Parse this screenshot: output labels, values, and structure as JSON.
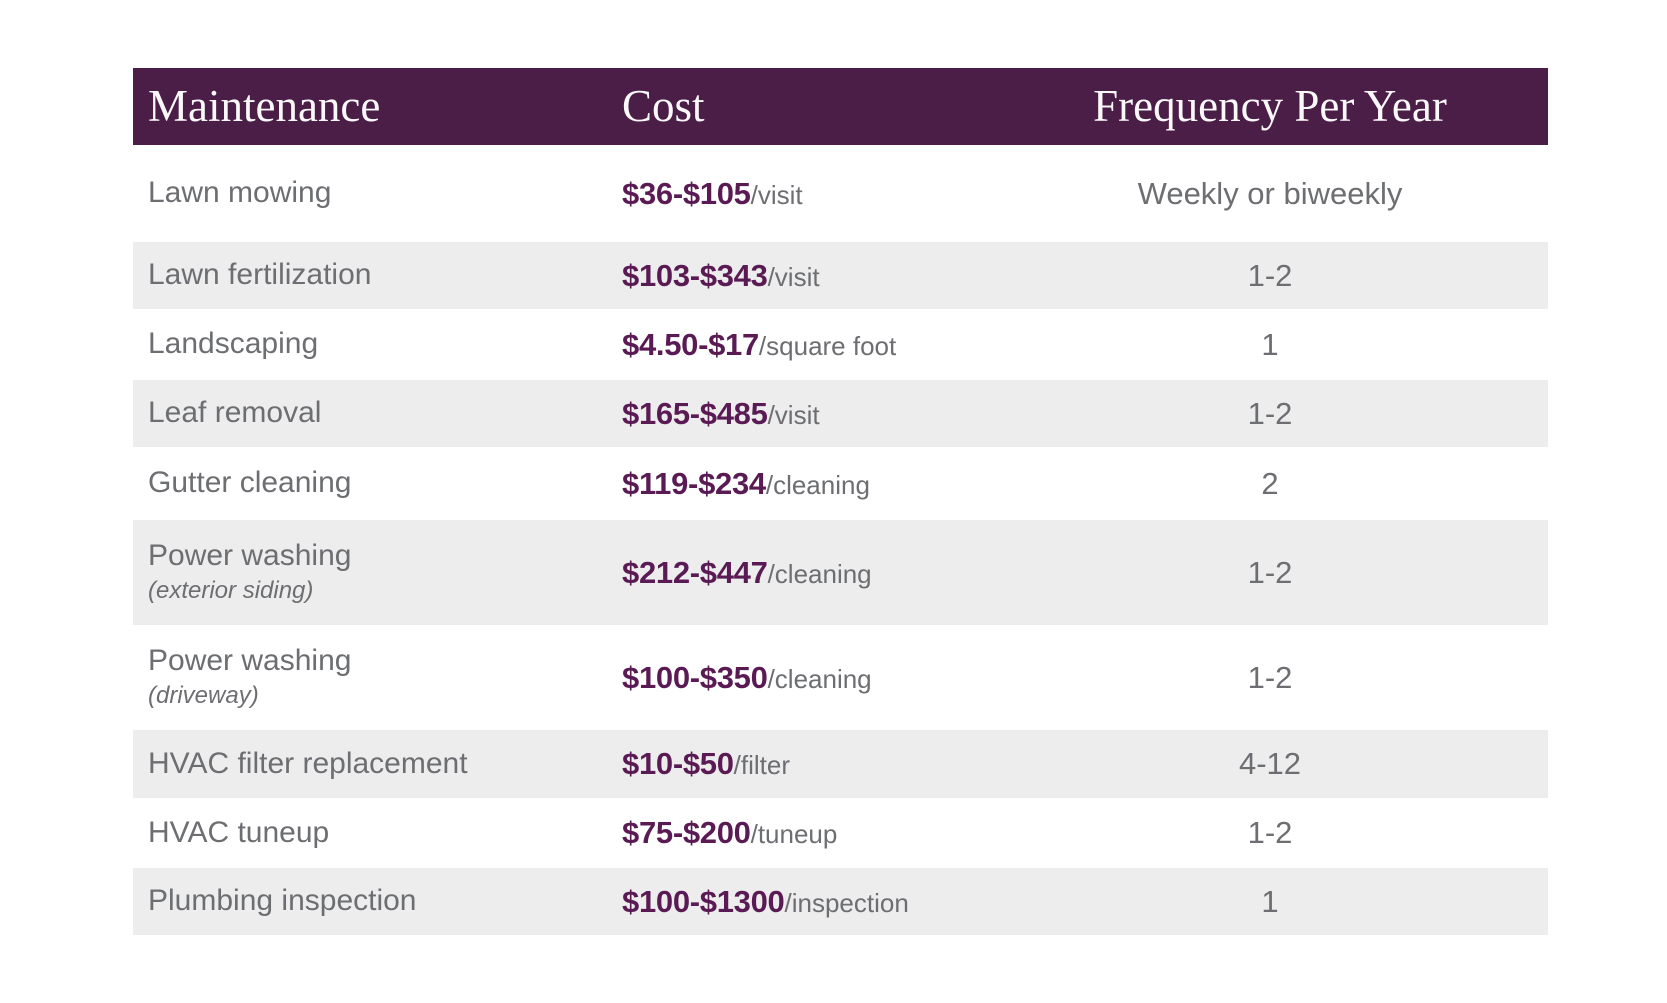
{
  "colors": {
    "header_bg": "#4a1e46",
    "header_text": "#fbf8fa",
    "price_text": "#5a1b54",
    "body_text": "#6d6e71",
    "shaded_row_bg": "#ededee",
    "page_bg": "#ffffff"
  },
  "table": {
    "headers": [
      "Maintenance",
      "Cost",
      "Frequency Per Year"
    ],
    "rows": [
      {
        "name": "Lawn mowing",
        "sub": "",
        "price": "$36-$105",
        "unit": "/visit",
        "freq": "Weekly or biweekly"
      },
      {
        "name": "Lawn fertilization",
        "sub": "",
        "price": "$103-$343",
        "unit": "/visit",
        "freq": "1-2"
      },
      {
        "name": "Landscaping",
        "sub": "",
        "price": "$4.50-$17",
        "unit": "/square foot",
        "freq": "1"
      },
      {
        "name": "Leaf removal",
        "sub": "",
        "price": "$165-$485",
        "unit": "/visit",
        "freq": "1-2"
      },
      {
        "name": "Gutter cleaning",
        "sub": "",
        "price": "$119-$234",
        "unit": "/cleaning",
        "freq": "2"
      },
      {
        "name": "Power washing",
        "sub": "(exterior siding)",
        "price": "$212-$447",
        "unit": "/cleaning",
        "freq": "1-2"
      },
      {
        "name": "Power washing",
        "sub": "(driveway)",
        "price": "$100-$350",
        "unit": "/cleaning",
        "freq": "1-2"
      },
      {
        "name": "HVAC filter replacement",
        "sub": "",
        "price": "$10-$50",
        "unit": "/filter",
        "freq": "4-12"
      },
      {
        "name": "HVAC tuneup",
        "sub": "",
        "price": "$75-$200",
        "unit": "/tuneup",
        "freq": "1-2"
      },
      {
        "name": "Plumbing inspection",
        "sub": "",
        "price": "$100-$1300",
        "unit": "/inspection",
        "freq": "1"
      }
    ]
  },
  "chart_data": {
    "type": "table",
    "title": "",
    "columns": [
      "Maintenance",
      "Cost",
      "Frequency Per Year"
    ],
    "rows": [
      [
        "Lawn mowing",
        "$36-$105/visit",
        "Weekly or biweekly"
      ],
      [
        "Lawn fertilization",
        "$103-$343/visit",
        "1-2"
      ],
      [
        "Landscaping",
        "$4.50-$17/square foot",
        "1"
      ],
      [
        "Leaf removal",
        "$165-$485/visit",
        "1-2"
      ],
      [
        "Gutter cleaning",
        "$119-$234/cleaning",
        "2"
      ],
      [
        "Power washing (exterior siding)",
        "$212-$447/cleaning",
        "1-2"
      ],
      [
        "Power washing (driveway)",
        "$100-$350/cleaning",
        "1-2"
      ],
      [
        "HVAC filter replacement",
        "$10-$50/filter",
        "4-12"
      ],
      [
        "HVAC tuneup",
        "$75-$200/tuneup",
        "1-2"
      ],
      [
        "Plumbing inspection",
        "$100-$1300/inspection",
        "1"
      ]
    ],
    "layout_hints": {
      "zebra_striping": true,
      "shaded_rows": [
        2,
        4,
        6,
        8,
        10
      ],
      "col1_align": "left",
      "col2_align": "left",
      "col3_align": "center"
    }
  }
}
